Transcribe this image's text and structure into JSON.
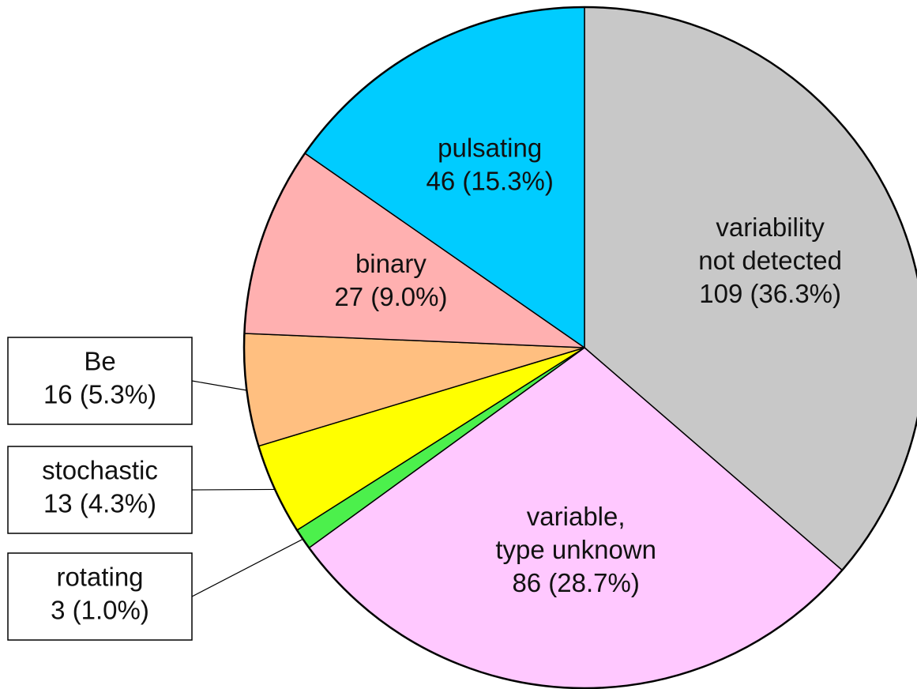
{
  "chart_data": {
    "type": "pie",
    "categories": [
      "variability\nnot detected",
      "variable,\ntype unknown",
      "rotating",
      "stochastic",
      "Be",
      "binary",
      "pulsating"
    ],
    "values": [
      109,
      86,
      3,
      13,
      16,
      27,
      46
    ],
    "value_labels": [
      "109 (36.3%)",
      "86 (28.7%)",
      "3 (1.0%)",
      "13 (4.3%)",
      "16 (5.3%)",
      "27 (9.0%)",
      "46 (15.3%)"
    ],
    "colors": [
      "#c8c8c8",
      "#ffc8ff",
      "#4cf04c",
      "#ffff00",
      "#ffbf80",
      "#ffb0b0",
      "#00ccff"
    ]
  }
}
